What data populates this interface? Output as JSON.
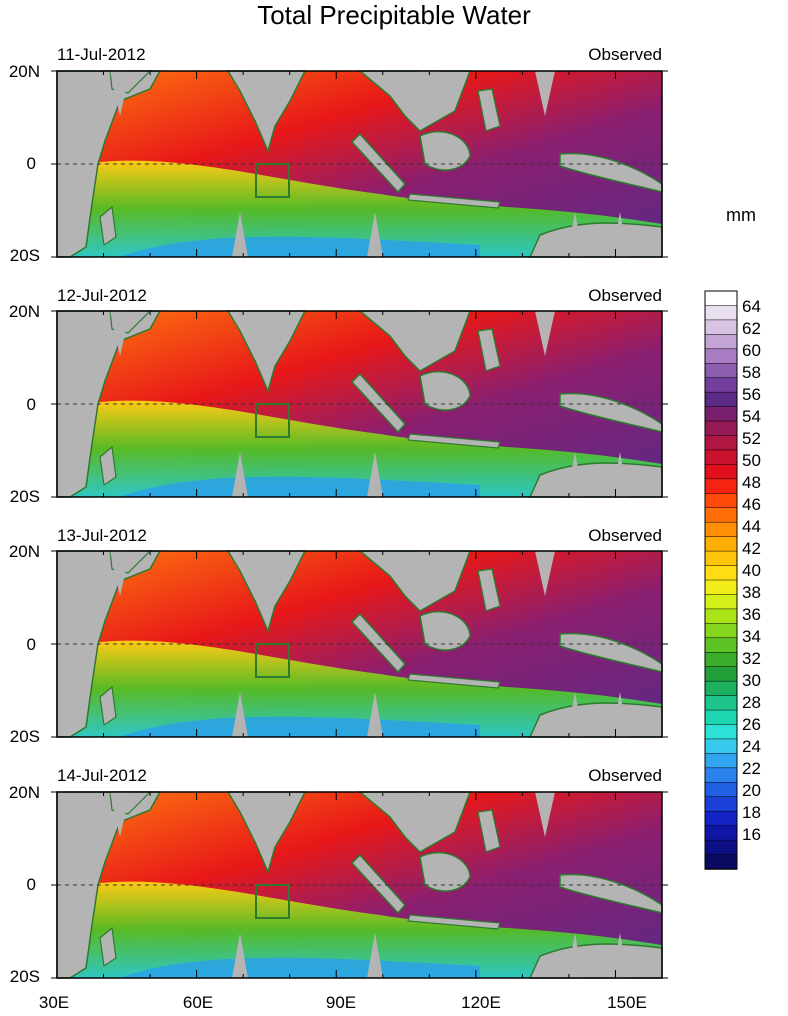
{
  "title": "Total Precipitable Water",
  "units": "mm",
  "panels": [
    {
      "date": "11-Jul-2012",
      "label": "Observed"
    },
    {
      "date": "12-Jul-2012",
      "label": "Observed"
    },
    {
      "date": "13-Jul-2012",
      "label": "Observed"
    },
    {
      "date": "14-Jul-2012",
      "label": "Observed"
    }
  ],
  "lat_labels": [
    "20N",
    "0",
    "20S"
  ],
  "lon_labels": [
    "30E",
    "60E",
    "90E",
    "120E",
    "150E"
  ],
  "colorbar": {
    "labels": [
      "64",
      "62",
      "60",
      "58",
      "56",
      "54",
      "52",
      "50",
      "48",
      "46",
      "44",
      "42",
      "40",
      "38",
      "36",
      "34",
      "32",
      "30",
      "28",
      "26",
      "24",
      "22",
      "20",
      "18",
      "16"
    ],
    "colors": [
      "#ffffff",
      "#eadff0",
      "#d9c3e3",
      "#c4a3d6",
      "#a97dc4",
      "#8d5db0",
      "#733f9c",
      "#5c2a87",
      "#7a1f6e",
      "#951a55",
      "#b01642",
      "#c9122e",
      "#e1101c",
      "#f42312",
      "#ff4a0a",
      "#ff6d08",
      "#ff9005",
      "#ffae05",
      "#ffc50a",
      "#ffdc14",
      "#f2ec19",
      "#d4ee19",
      "#abe319",
      "#86d61e",
      "#5cc424",
      "#3aae2a",
      "#24a03a",
      "#1cb060",
      "#1ec48a",
      "#1fd6b2",
      "#2de1d6",
      "#37c9ec",
      "#32a5f0",
      "#2a82ec",
      "#2160e4",
      "#1a40d8",
      "#1424c4",
      "#0f16a6",
      "#0c0f84",
      "#0a0a60"
    ]
  },
  "box_color": "#2d7a2d",
  "land_color": "#b4b4b4",
  "coast_color": "#2d7a2d"
}
